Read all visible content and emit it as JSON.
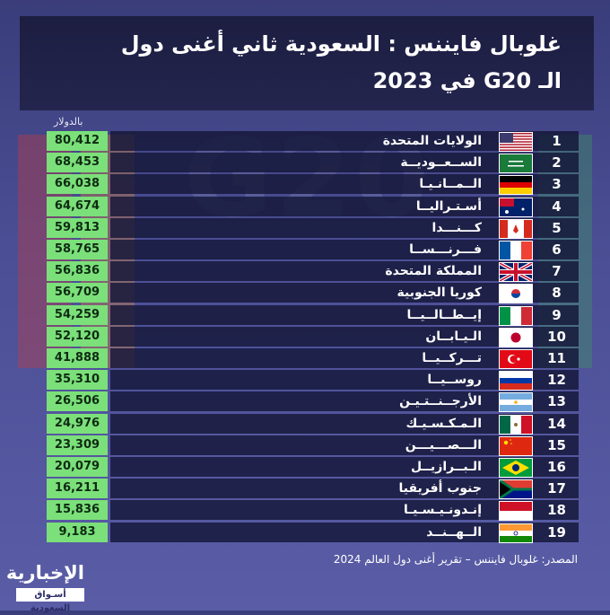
{
  "title": {
    "line1": "غلوبال فايننس : السعودية ثاني أغنى دول",
    "line2": "الـ G20 في 2023"
  },
  "unit_label": "بالدولار",
  "source": "المصدر: غلوبال فايننس – تقرير أغنى دول العالم 2024",
  "logo": {
    "name": "الإخبارية",
    "tagline": "أسـواق السعودية"
  },
  "chart_data": {
    "type": "bar",
    "title": "غلوبال فايننس : السعودية ثاني أغنى دول الـ G20 في 2023",
    "ylabel": "بالدولار",
    "categories": [
      "الولايات المتحدة",
      "السعودية",
      "ألمانيا",
      "أستراليا",
      "كندا",
      "فرنسا",
      "المملكة المتحدة",
      "كوريا الجنوبية",
      "إيطاليا",
      "اليابان",
      "تركيا",
      "روسيا",
      "الأرجنتين",
      "المكسيك",
      "الصين",
      "البرازيل",
      "جنوب أفريقيا",
      "إندونيسيا",
      "الهند"
    ],
    "display_labels": [
      "الولايات المتحدة",
      "الســعــوديــة",
      "الــمــانـيـا",
      "أسـتـراليــا",
      "كـــنـــدا",
      "فـــرنـــســا",
      "المملكة المتحدة",
      "كوريا الجنوبية",
      "إيــطــالــيــا",
      "الـيـابــان",
      "تـــركــيــا",
      "روســيــا",
      "الأرجــنــتـيـن",
      "الـمـكـسـيـك",
      "الـــصـــيـــن",
      "الـبــرازيــل",
      "جنوب أفريقيا",
      "إنـدونـيـسـيـا",
      "الــهــنــد"
    ],
    "values": [
      80412,
      68453,
      66038,
      64674,
      59813,
      58765,
      56836,
      56709,
      54259,
      52120,
      41888,
      35310,
      26506,
      24976,
      23309,
      20079,
      16211,
      15836,
      9183
    ],
    "value_labels": [
      "80,412",
      "68,453",
      "66,038",
      "64,674",
      "59,813",
      "58,765",
      "56,836",
      "56,709",
      "54,259",
      "52,120",
      "41,888",
      "35,310",
      "26,506",
      "24,976",
      "23,309",
      "20,079",
      "16,211",
      "15,836",
      "9,183"
    ],
    "ranks": [
      "1",
      "2",
      "3",
      "4",
      "5",
      "6",
      "7",
      "8",
      "9",
      "10",
      "11",
      "12",
      "13",
      "14",
      "15",
      "16",
      "17",
      "18",
      "19"
    ],
    "flag_icons": [
      "us-flag-icon",
      "saudi-flag-icon",
      "germany-flag-icon",
      "australia-flag-icon",
      "canada-flag-icon",
      "france-flag-icon",
      "uk-flag-icon",
      "south-korea-flag-icon",
      "italy-flag-icon",
      "japan-flag-icon",
      "turkey-flag-icon",
      "russia-flag-icon",
      "argentina-flag-icon",
      "mexico-flag-icon",
      "china-flag-icon",
      "brazil-flag-icon",
      "south-africa-flag-icon",
      "indonesia-flag-icon",
      "india-flag-icon"
    ],
    "colors": {
      "value_box": "#7be07a",
      "row_bar": "#16183a",
      "header": "#1b1c3e"
    }
  }
}
